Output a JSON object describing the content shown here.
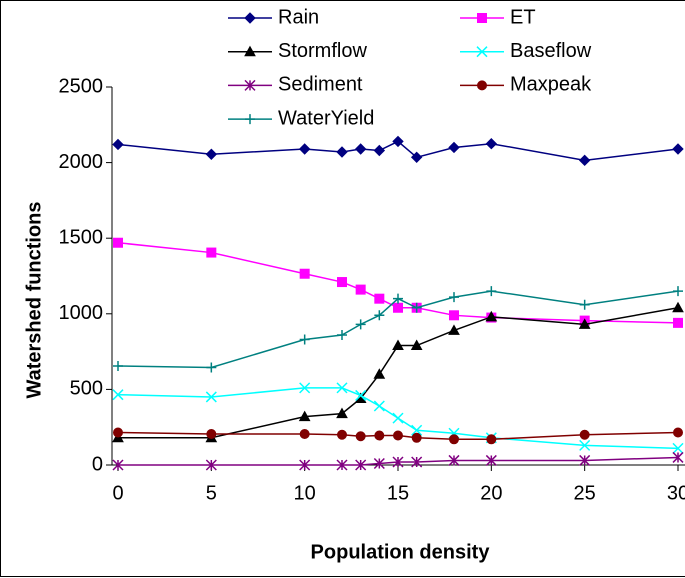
{
  "chart_data": {
    "type": "line",
    "x_label": "Population density",
    "y_label": "Watershed functions",
    "x": [
      0,
      5,
      10,
      12,
      13,
      14,
      15,
      16,
      18,
      20,
      25,
      30
    ],
    "xlim": [
      0,
      30
    ],
    "xticks": [
      0,
      5,
      10,
      15,
      20,
      25,
      30
    ],
    "ylim": [
      0,
      2500
    ],
    "yticks": [
      0,
      500,
      1000,
      1500,
      2000,
      2500
    ],
    "series": [
      {
        "name": "Rain",
        "color": "#000080",
        "marker": "diamond",
        "values": [
          2120,
          2055,
          2090,
          2070,
          2090,
          2080,
          2140,
          2035,
          2100,
          2125,
          2015,
          2090
        ]
      },
      {
        "name": "ET",
        "color": "#ff00ff",
        "marker": "square",
        "values": [
          1470,
          1405,
          1265,
          1210,
          1160,
          1100,
          1040,
          1040,
          990,
          975,
          955,
          940
        ]
      },
      {
        "name": "Stormflow",
        "color": "#000000",
        "marker": "triangle",
        "values": [
          180,
          180,
          320,
          340,
          440,
          600,
          790,
          790,
          890,
          980,
          930,
          1040
        ]
      },
      {
        "name": "Baseflow",
        "color": "#00ffff",
        "marker": "x",
        "values": [
          465,
          450,
          510,
          510,
          460,
          390,
          310,
          230,
          210,
          180,
          130,
          110
        ]
      },
      {
        "name": "Sediment",
        "color": "#800080",
        "marker": "star",
        "values": [
          0,
          0,
          0,
          0,
          0,
          10,
          20,
          20,
          30,
          30,
          30,
          50
        ]
      },
      {
        "name": "Maxpeak",
        "color": "#800000",
        "marker": "circle",
        "values": [
          215,
          205,
          205,
          200,
          190,
          195,
          195,
          180,
          170,
          170,
          200,
          215
        ]
      },
      {
        "name": "WaterYield",
        "color": "#008080",
        "marker": "plus",
        "values": [
          655,
          645,
          830,
          860,
          930,
          990,
          1100,
          1040,
          1110,
          1150,
          1060,
          1150
        ]
      }
    ]
  }
}
